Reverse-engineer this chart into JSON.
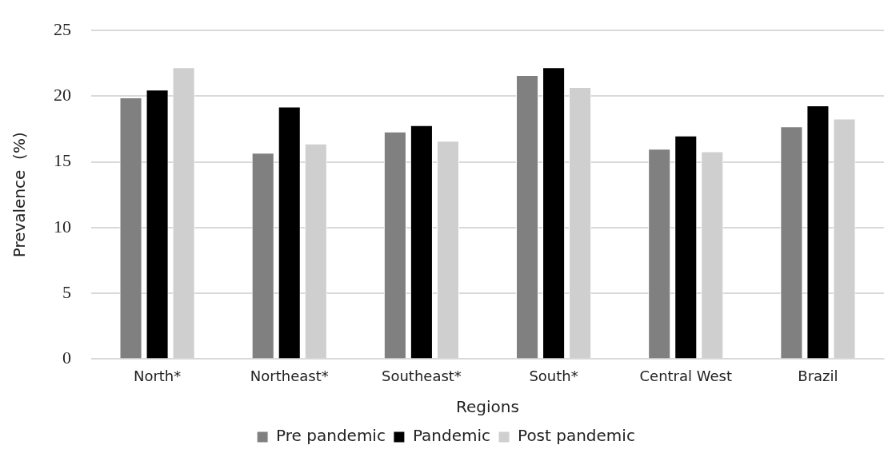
{
  "chart_data": {
    "type": "bar",
    "xlabel": "Regions",
    "ylabel": "Prevalence  (%)",
    "categories": [
      "North*",
      "Northeast*",
      "Southeast*",
      "South*",
      "Central West",
      "Brazil"
    ],
    "series": [
      {
        "name": "Pre pandemic",
        "color": "#808080",
        "values": [
          19.9,
          15.7,
          17.3,
          21.6,
          16.0,
          17.7
        ]
      },
      {
        "name": "Pandemic",
        "color": "#000000",
        "values": [
          20.5,
          19.2,
          17.8,
          22.2,
          17.0,
          19.3
        ]
      },
      {
        "name": "Post pandemic",
        "color": "#d0cfd0",
        "values": [
          22.2,
          16.4,
          16.6,
          20.7,
          15.8,
          18.3
        ]
      }
    ],
    "ylim": [
      0,
      25
    ],
    "yticks": [
      0,
      5,
      10,
      15,
      20,
      25
    ],
    "grid": "y",
    "legend": "bottom"
  }
}
